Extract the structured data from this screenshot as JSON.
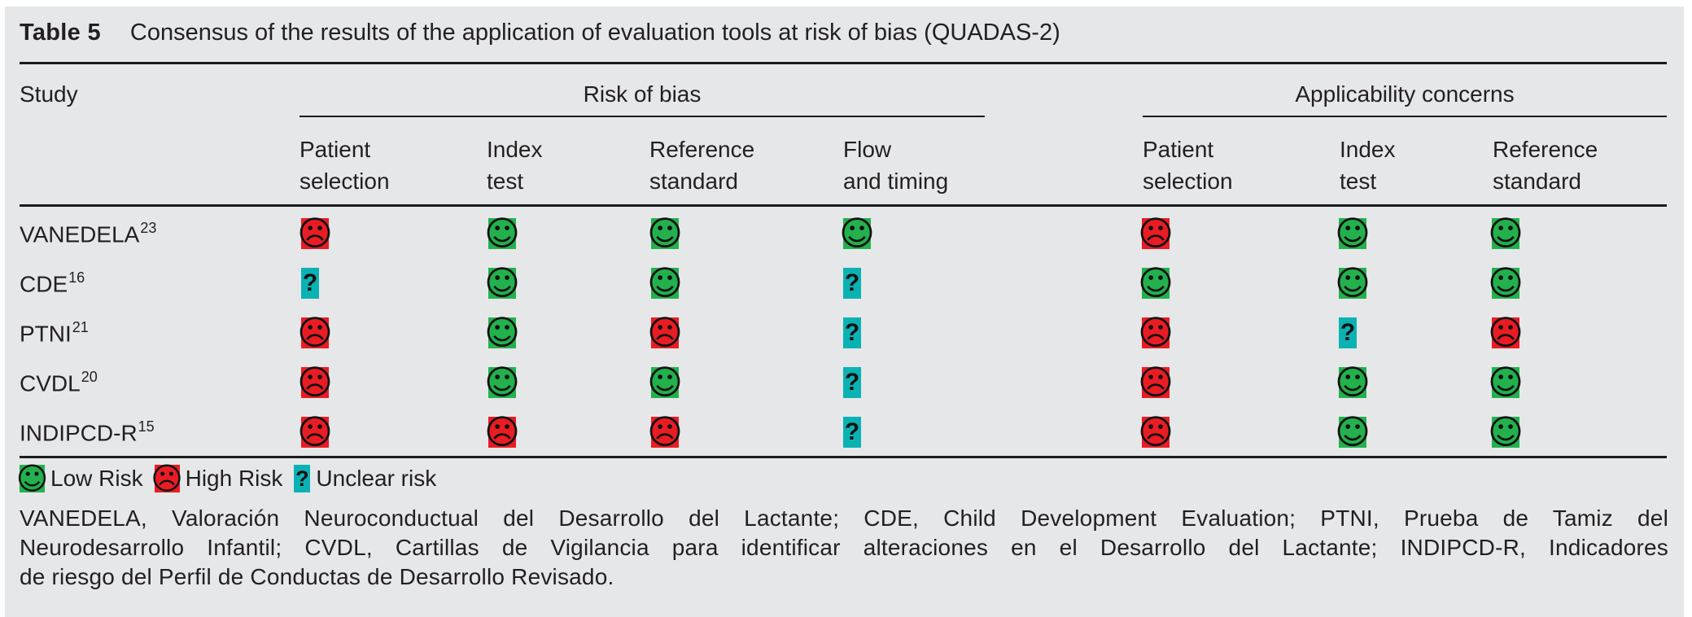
{
  "title": {
    "label": "Table 5",
    "text": "Consensus of the results of the application of evaluation tools at risk of bias (QUADAS-2)"
  },
  "headers": {
    "study": "Study",
    "group1": "Risk of bias",
    "group2": "Applicability concerns",
    "sub": [
      {
        "key": "rob-patient-selection",
        "line1": "Patient",
        "line2": "selection"
      },
      {
        "key": "rob-index-test",
        "line1": "Index",
        "line2": "test"
      },
      {
        "key": "rob-reference-standard",
        "line1": "Reference",
        "line2": "standard"
      },
      {
        "key": "rob-flow-and-timing",
        "line1": "Flow",
        "line2": "and timing"
      },
      {
        "key": "ac-patient-selection",
        "line1": "Patient",
        "line2": "selection"
      },
      {
        "key": "ac-index-test",
        "line1": "Index",
        "line2": "test"
      },
      {
        "key": "ac-reference-standard",
        "line1": "Reference",
        "line2": "standard"
      }
    ]
  },
  "icons": {
    "low": {
      "glyph": "☺",
      "name": "low-risk-smiley-icon",
      "color": "#23b14d",
      "meaning": "Low Risk"
    },
    "high": {
      "glyph": "☹",
      "name": "high-risk-frown-icon",
      "color": "#ea1c23",
      "meaning": "High Risk"
    },
    "unclear": {
      "glyph": "?",
      "name": "unclear-risk-question-icon",
      "color": "#0bb2b4",
      "meaning": "Unclear risk"
    }
  },
  "rows": [
    {
      "study": "VANEDELA",
      "sup": "23",
      "cells": [
        "high",
        "low",
        "low",
        "low",
        "high",
        "low",
        "low"
      ]
    },
    {
      "study": "CDE",
      "sup": "16",
      "cells": [
        "unclear",
        "low",
        "low",
        "unclear",
        "low",
        "low",
        "low"
      ]
    },
    {
      "study": "PTNI",
      "sup": "21",
      "cells": [
        "high",
        "low",
        "high",
        "unclear",
        "high",
        "unclear",
        "high"
      ]
    },
    {
      "study": "CVDL",
      "sup": "20",
      "cells": [
        "high",
        "low",
        "low",
        "unclear",
        "high",
        "low",
        "low"
      ]
    },
    {
      "study": "INDIPCD-R",
      "sup": "15",
      "cells": [
        "high",
        "high",
        "high",
        "unclear",
        "high",
        "low",
        "low"
      ]
    }
  ],
  "legend": [
    {
      "type": "low",
      "label": "Low Risk"
    },
    {
      "type": "high",
      "label": "High Risk"
    },
    {
      "type": "unclear",
      "label": "Unclear risk"
    }
  ],
  "footnote": {
    "line1": "VANEDELA, Valoración Neuroconductual del Desarrollo del Lactante; CDE, Child Development Evaluation; PTNI, Prueba de Tamiz del",
    "line2": "Neurodesarrollo Infantil; CVDL, Cartillas de Vigilancia para identificar alteraciones en el Desarrollo del Lactante; INDIPCD-R, Indicadores",
    "line3": "de riesgo del Perfil de Conductas de Desarrollo Revisado."
  }
}
